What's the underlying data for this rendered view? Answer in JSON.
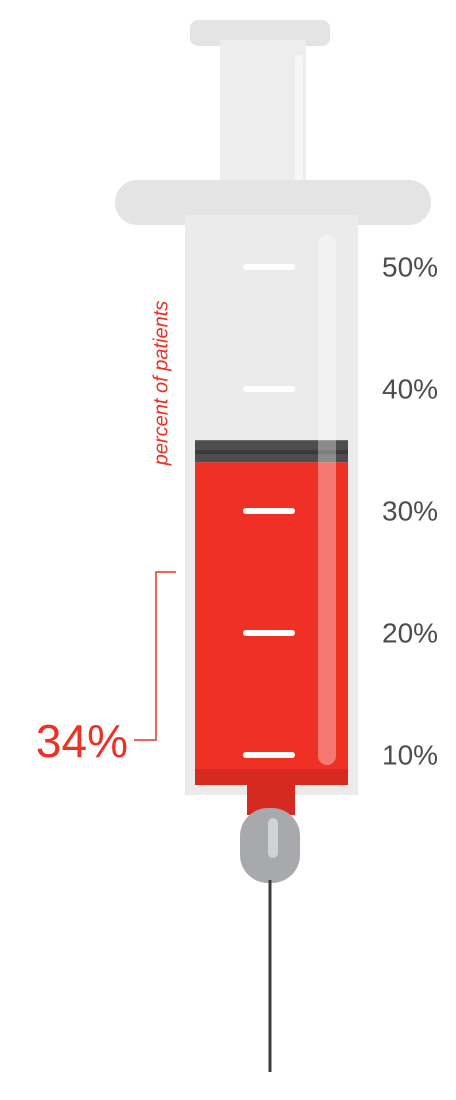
{
  "chart_data": {
    "type": "bar",
    "y_label": "percent of patients",
    "values": [
      34
    ],
    "value_labels": [
      "34%"
    ],
    "color": "#ee3124",
    "ylim": [
      0,
      60
    ],
    "yticks": [
      {
        "value": 10,
        "label": "10%"
      },
      {
        "value": 20,
        "label": "20%"
      },
      {
        "value": 30,
        "label": "30%"
      },
      {
        "value": 40,
        "label": "40%"
      },
      {
        "value": 50,
        "label": "50%"
      }
    ]
  }
}
